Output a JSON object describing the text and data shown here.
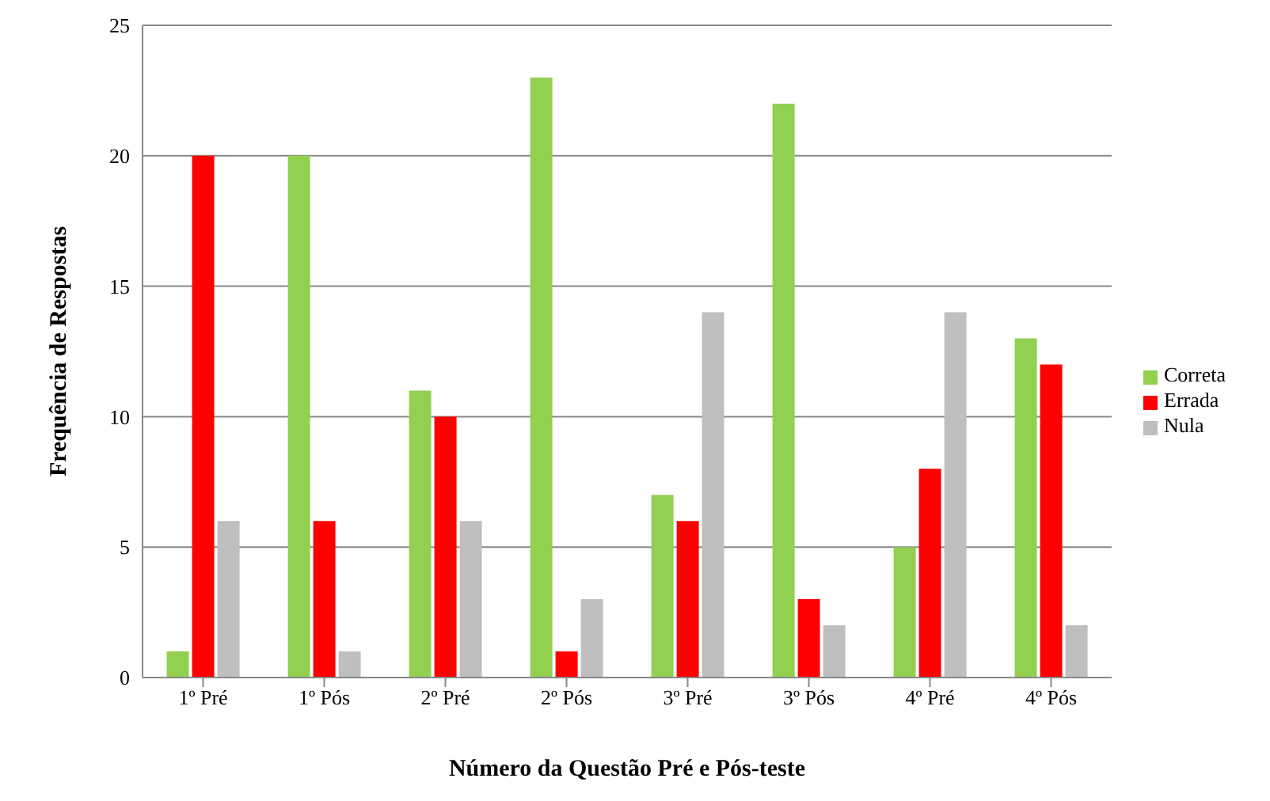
{
  "chart_data": {
    "type": "bar",
    "xlabel": "Número da Questão Pré e Pós-teste",
    "ylabel": "Frequência de Respostas",
    "categories": [
      "1º Pré",
      "1º Pós",
      "2º Pré",
      "2º Pós",
      "3º Pré",
      "3º Pós",
      "4º Pré",
      "4º Pós"
    ],
    "series": [
      {
        "name": "Correta",
        "color": "#92d050",
        "values": [
          1,
          20,
          11,
          23,
          7,
          22,
          5,
          13
        ]
      },
      {
        "name": "Errada",
        "color": "#ff0000",
        "values": [
          20,
          6,
          10,
          1,
          6,
          3,
          8,
          12
        ]
      },
      {
        "name": "Nula",
        "color": "#bfbfbf",
        "values": [
          6,
          1,
          6,
          3,
          14,
          2,
          14,
          2
        ]
      }
    ],
    "ylim": [
      0,
      25
    ],
    "yticks": [
      0,
      5,
      10,
      15,
      20,
      25
    ],
    "grid": "y",
    "legend": "right"
  }
}
